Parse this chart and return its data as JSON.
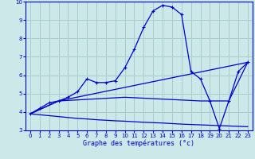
{
  "background_color": "#cce8e8",
  "grid_color": "#aacccc",
  "line_color": "#0000cc",
  "xlabel": "Graphe des températures (°c)",
  "xlim": [
    -0.5,
    23.5
  ],
  "ylim": [
    3,
    10
  ],
  "xticks": [
    0,
    1,
    2,
    3,
    4,
    5,
    6,
    7,
    8,
    9,
    10,
    11,
    12,
    13,
    14,
    15,
    16,
    17,
    18,
    19,
    20,
    21,
    22,
    23
  ],
  "yticks": [
    3,
    4,
    5,
    6,
    7,
    8,
    9,
    10
  ],
  "line1_x": [
    0,
    1,
    2,
    3,
    4,
    5,
    6,
    7,
    8,
    9,
    10,
    11,
    12,
    13,
    14,
    15,
    16,
    17,
    18,
    19,
    20,
    21,
    22,
    23
  ],
  "line1_y": [
    3.9,
    4.2,
    4.5,
    4.6,
    4.8,
    5.1,
    5.8,
    5.6,
    5.6,
    5.7,
    6.4,
    7.4,
    8.6,
    9.5,
    9.8,
    9.7,
    9.3,
    6.2,
    5.8,
    4.6,
    3.1,
    4.6,
    6.2,
    6.7
  ],
  "line2_x": [
    0,
    3,
    23
  ],
  "line2_y": [
    3.9,
    4.6,
    6.7
  ],
  "line3_x": [
    0,
    3,
    10,
    18,
    21,
    23
  ],
  "line3_y": [
    3.9,
    4.6,
    4.8,
    4.6,
    4.6,
    6.7
  ],
  "line4_x": [
    0,
    1,
    2,
    3,
    4,
    5,
    6,
    7,
    8,
    9,
    10,
    11,
    12,
    13,
    14,
    15,
    16,
    17,
    18,
    19,
    20,
    21,
    22,
    23
  ],
  "line4_y": [
    3.9,
    3.85,
    3.8,
    3.75,
    3.7,
    3.65,
    3.62,
    3.58,
    3.55,
    3.52,
    3.5,
    3.47,
    3.44,
    3.42,
    3.4,
    3.37,
    3.34,
    3.32,
    3.3,
    3.28,
    3.26,
    3.24,
    3.22,
    3.2
  ]
}
